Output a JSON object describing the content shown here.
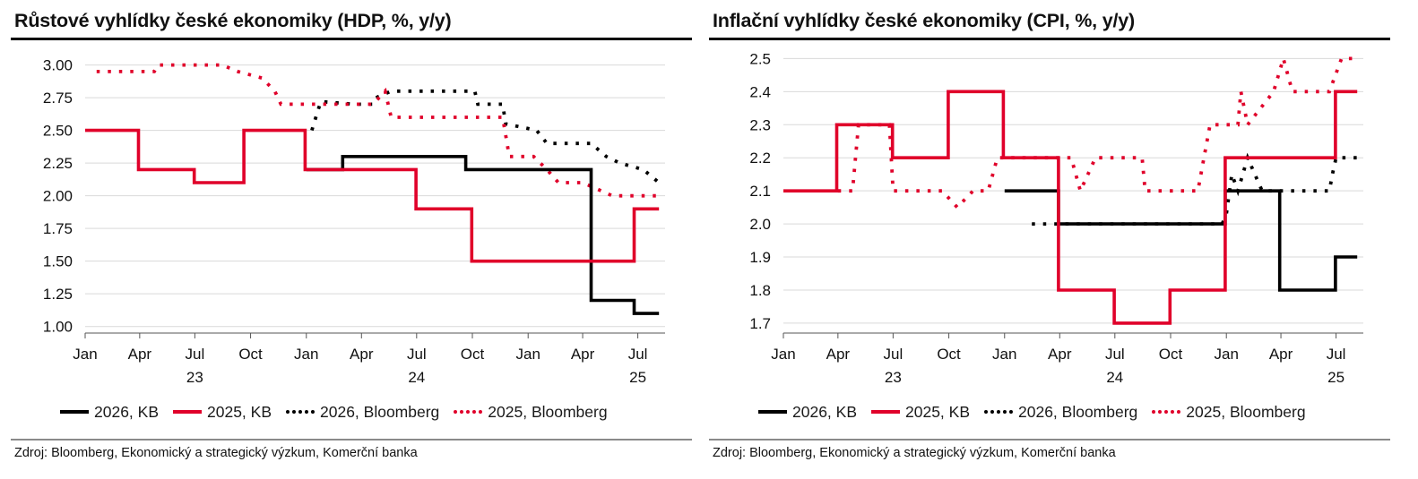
{
  "charts": [
    {
      "title": "Růstové vyhlídky české ekonomiky (HDP, %, y/y)",
      "source": "Zdroj: Bloomberg, Ekonomický a strategický výzkum, Komerční banka",
      "legend": [
        "2026, KB",
        "2025, KB",
        "2026, Bloomberg",
        "2025, Bloomberg"
      ]
    },
    {
      "title": "Inflační vyhlídky české ekonomiky (CPI, %, y/y)",
      "source": "Zdroj: Bloomberg, Ekonomický a strategický výzkum, Komerční banka",
      "legend": [
        "2026, KB",
        "2025, KB",
        "2026, Bloomberg",
        "2025, Bloomberg"
      ]
    }
  ],
  "chart_data": [
    {
      "type": "line",
      "title": "Růstové vyhlídky české ekonomiky (HDP, %, y/y)",
      "x_axis": {
        "type": "date",
        "range": [
          "2023-01-01",
          "2025-08-15"
        ],
        "ticks": [
          {
            "date": "2023-01-01",
            "label": "Jan",
            "year": ""
          },
          {
            "date": "2023-04-01",
            "label": "Apr",
            "year": ""
          },
          {
            "date": "2023-07-01",
            "label": "Jul",
            "year": "23"
          },
          {
            "date": "2023-10-01",
            "label": "Oct",
            "year": ""
          },
          {
            "date": "2024-01-01",
            "label": "Jan",
            "year": ""
          },
          {
            "date": "2024-04-01",
            "label": "Apr",
            "year": ""
          },
          {
            "date": "2024-07-01",
            "label": "Jul",
            "year": "24"
          },
          {
            "date": "2024-10-01",
            "label": "Oct",
            "year": ""
          },
          {
            "date": "2025-01-01",
            "label": "Jan",
            "year": ""
          },
          {
            "date": "2025-04-01",
            "label": "Apr",
            "year": ""
          },
          {
            "date": "2025-07-01",
            "label": "Jul",
            "year": "25"
          }
        ]
      },
      "y_axis": {
        "range": [
          0.95,
          3.1
        ],
        "ticks": [
          1.0,
          1.25,
          1.5,
          1.75,
          2.0,
          2.25,
          2.5,
          2.75,
          3.0
        ],
        "decimals": 2
      },
      "grid": true,
      "legend_position": "bottom",
      "series": [
        {
          "name": "2026, KB",
          "color": "#000000",
          "style": "solid",
          "points": [
            [
              "2024-01-01",
              2.2
            ],
            [
              "2024-03-01",
              2.2
            ],
            [
              "2024-03-01",
              2.3
            ],
            [
              "2024-09-20",
              2.3
            ],
            [
              "2024-09-20",
              2.2
            ],
            [
              "2025-04-15",
              2.2
            ],
            [
              "2025-04-15",
              1.2
            ],
            [
              "2025-06-25",
              1.2
            ],
            [
              "2025-06-25",
              1.1
            ],
            [
              "2025-08-05",
              1.1
            ]
          ]
        },
        {
          "name": "2025, KB",
          "color": "#e0002a",
          "style": "solid",
          "points": [
            [
              "2023-01-01",
              2.5
            ],
            [
              "2023-03-30",
              2.5
            ],
            [
              "2023-03-30",
              2.2
            ],
            [
              "2023-06-30",
              2.2
            ],
            [
              "2023-06-30",
              2.1
            ],
            [
              "2023-09-20",
              2.1
            ],
            [
              "2023-09-20",
              2.5
            ],
            [
              "2023-12-30",
              2.5
            ],
            [
              "2023-12-30",
              2.2
            ],
            [
              "2024-06-30",
              2.2
            ],
            [
              "2024-06-30",
              1.9
            ],
            [
              "2024-09-30",
              1.9
            ],
            [
              "2024-09-30",
              1.5
            ],
            [
              "2025-06-25",
              1.5
            ],
            [
              "2025-06-25",
              1.9
            ],
            [
              "2025-08-05",
              1.9
            ]
          ]
        },
        {
          "name": "2026, Bloomberg",
          "color": "#000000",
          "style": "dotted",
          "points": [
            [
              "2024-01-10",
              2.5
            ],
            [
              "2024-01-20",
              2.65
            ],
            [
              "2024-01-25",
              2.72
            ],
            [
              "2024-03-20",
              2.7
            ],
            [
              "2024-04-20",
              2.7
            ],
            [
              "2024-04-25",
              2.75
            ],
            [
              "2024-05-20",
              2.8
            ],
            [
              "2024-10-05",
              2.8
            ],
            [
              "2024-10-10",
              2.7
            ],
            [
              "2024-11-20",
              2.7
            ],
            [
              "2024-11-25",
              2.55
            ],
            [
              "2025-01-15",
              2.5
            ],
            [
              "2025-02-01",
              2.4
            ],
            [
              "2025-04-15",
              2.4
            ],
            [
              "2025-05-10",
              2.3
            ],
            [
              "2025-06-01",
              2.25
            ],
            [
              "2025-07-10",
              2.2
            ],
            [
              "2025-08-05",
              2.1
            ]
          ]
        },
        {
          "name": "2025, Bloomberg",
          "color": "#e0002a",
          "style": "dotted",
          "points": [
            [
              "2023-01-20",
              2.95
            ],
            [
              "2023-02-10",
              2.95
            ],
            [
              "2023-04-25",
              2.95
            ],
            [
              "2023-05-01",
              3.0
            ],
            [
              "2023-08-15",
              3.0
            ],
            [
              "2023-09-10",
              2.95
            ],
            [
              "2023-10-20",
              2.9
            ],
            [
              "2023-11-10",
              2.8
            ],
            [
              "2023-11-20",
              2.7
            ],
            [
              "2024-03-10",
              2.7
            ],
            [
              "2024-04-20",
              2.7
            ],
            [
              "2024-05-10",
              2.8
            ],
            [
              "2024-05-20",
              2.6
            ],
            [
              "2024-10-01",
              2.6
            ],
            [
              "2024-11-20",
              2.6
            ],
            [
              "2024-12-01",
              2.3
            ],
            [
              "2025-01-10",
              2.3
            ],
            [
              "2025-02-01",
              2.2
            ],
            [
              "2025-02-20",
              2.1
            ],
            [
              "2025-04-01",
              2.1
            ],
            [
              "2025-05-20",
              2.0
            ],
            [
              "2025-08-05",
              2.0
            ]
          ]
        }
      ]
    },
    {
      "type": "line",
      "title": "Inflační vyhlídky české ekonomiky (CPI, %, y/y)",
      "x_axis": {
        "type": "date",
        "range": [
          "2023-01-01",
          "2025-08-15"
        ],
        "ticks": [
          {
            "date": "2023-01-01",
            "label": "Jan",
            "year": ""
          },
          {
            "date": "2023-04-01",
            "label": "Apr",
            "year": ""
          },
          {
            "date": "2023-07-01",
            "label": "Jul",
            "year": "23"
          },
          {
            "date": "2023-10-01",
            "label": "Oct",
            "year": ""
          },
          {
            "date": "2024-01-01",
            "label": "Jan",
            "year": ""
          },
          {
            "date": "2024-04-01",
            "label": "Apr",
            "year": ""
          },
          {
            "date": "2024-07-01",
            "label": "Jul",
            "year": "24"
          },
          {
            "date": "2024-10-01",
            "label": "Oct",
            "year": ""
          },
          {
            "date": "2025-01-01",
            "label": "Jan",
            "year": ""
          },
          {
            "date": "2025-04-01",
            "label": "Apr",
            "year": ""
          },
          {
            "date": "2025-07-01",
            "label": "Jul",
            "year": "25"
          }
        ]
      },
      "y_axis": {
        "range": [
          1.67,
          2.52
        ],
        "ticks": [
          1.7,
          1.8,
          1.9,
          2.0,
          2.1,
          2.2,
          2.3,
          2.4,
          2.5
        ],
        "decimals": 1
      },
      "grid": true,
      "legend_position": "bottom",
      "series": [
        {
          "name": "2026, KB",
          "color": "#000000",
          "style": "solid",
          "points": [
            [
              "2024-01-01",
              2.1
            ],
            [
              "2024-03-30",
              2.1
            ],
            [
              "2024-03-30",
              2.0
            ],
            [
              "2024-12-30",
              2.0
            ],
            [
              "2024-12-30",
              2.1
            ],
            [
              "2025-03-30",
              2.1
            ],
            [
              "2025-03-30",
              1.8
            ],
            [
              "2025-06-30",
              1.8
            ],
            [
              "2025-06-30",
              1.9
            ],
            [
              "2025-08-05",
              1.9
            ]
          ]
        },
        {
          "name": "2025, KB",
          "color": "#e0002a",
          "style": "solid",
          "points": [
            [
              "2023-01-01",
              2.1
            ],
            [
              "2023-03-30",
              2.1
            ],
            [
              "2023-03-30",
              2.3
            ],
            [
              "2023-06-30",
              2.3
            ],
            [
              "2023-06-30",
              2.2
            ],
            [
              "2023-09-30",
              2.2
            ],
            [
              "2023-09-30",
              2.4
            ],
            [
              "2023-12-30",
              2.4
            ],
            [
              "2023-12-30",
              2.2
            ],
            [
              "2024-03-30",
              2.2
            ],
            [
              "2024-03-30",
              1.8
            ],
            [
              "2024-06-30",
              1.8
            ],
            [
              "2024-06-30",
              1.7
            ],
            [
              "2024-09-30",
              1.7
            ],
            [
              "2024-09-30",
              1.8
            ],
            [
              "2024-12-30",
              1.8
            ],
            [
              "2024-12-30",
              2.2
            ],
            [
              "2025-06-30",
              2.2
            ],
            [
              "2025-06-30",
              2.4
            ],
            [
              "2025-08-05",
              2.4
            ]
          ]
        },
        {
          "name": "2026, Bloomberg",
          "color": "#000000",
          "style": "dotted",
          "points": [
            [
              "2024-02-15",
              2.0
            ],
            [
              "2024-12-25",
              2.0
            ],
            [
              "2025-01-01",
              2.03
            ],
            [
              "2025-01-10",
              2.15
            ],
            [
              "2025-01-20",
              2.1
            ],
            [
              "2025-02-05",
              2.2
            ],
            [
              "2025-03-01",
              2.1
            ],
            [
              "2025-06-20",
              2.1
            ],
            [
              "2025-06-25",
              2.15
            ],
            [
              "2025-07-01",
              2.2
            ],
            [
              "2025-08-05",
              2.2
            ]
          ]
        },
        {
          "name": "2025, Bloomberg",
          "color": "#e0002a",
          "style": "dotted",
          "points": [
            [
              "2023-04-01",
              2.1
            ],
            [
              "2023-04-25",
              2.1
            ],
            [
              "2023-05-05",
              2.3
            ],
            [
              "2023-06-25",
              2.3
            ],
            [
              "2023-07-01",
              2.1
            ],
            [
              "2023-09-20",
              2.1
            ],
            [
              "2023-10-15",
              2.05
            ],
            [
              "2023-11-10",
              2.1
            ],
            [
              "2023-12-05",
              2.1
            ],
            [
              "2023-12-20",
              2.2
            ],
            [
              "2024-01-10",
              2.2
            ],
            [
              "2024-04-20",
              2.2
            ],
            [
              "2024-05-05",
              2.1
            ],
            [
              "2024-05-30",
              2.2
            ],
            [
              "2024-08-15",
              2.2
            ],
            [
              "2024-08-20",
              2.1
            ],
            [
              "2024-11-15",
              2.1
            ],
            [
              "2024-12-05",
              2.3
            ],
            [
              "2025-01-20",
              2.3
            ],
            [
              "2025-01-25",
              2.4
            ],
            [
              "2025-02-05",
              2.3
            ],
            [
              "2025-03-20",
              2.4
            ],
            [
              "2025-04-05",
              2.5
            ],
            [
              "2025-04-20",
              2.4
            ],
            [
              "2025-06-20",
              2.4
            ],
            [
              "2025-07-10",
              2.5
            ],
            [
              "2025-08-05",
              2.5
            ]
          ]
        }
      ]
    }
  ]
}
